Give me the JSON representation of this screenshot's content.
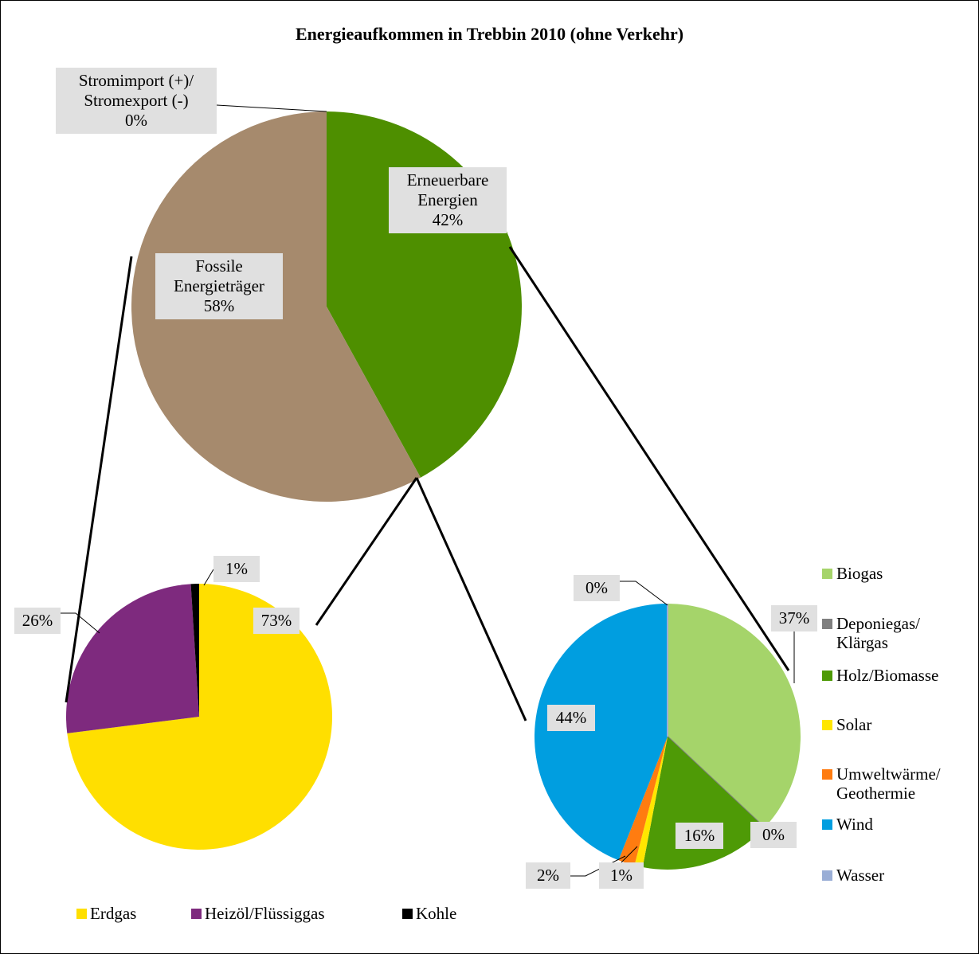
{
  "chart_data": [
    {
      "type": "pie",
      "title": "Energieaufkommen in Trebbin 2010 (ohne Verkehr)",
      "categories": [
        "Stromimport (+)/ Stromexport (-)",
        "Erneuerbare Energien",
        "Fossile Energieträger"
      ],
      "values": [
        0,
        42,
        58
      ],
      "value_labels": [
        "0%",
        "42%",
        "58%"
      ],
      "colors": [
        "#1f9ad6",
        "#4e8f00",
        "#a68a6d"
      ]
    },
    {
      "type": "pie",
      "categories": [
        "Erdgas",
        "Heizöl/Flüssiggas",
        "Kohle"
      ],
      "values": [
        73,
        26,
        1
      ],
      "value_labels": [
        "73%",
        "26%",
        "1%"
      ],
      "colors": [
        "#ffdf00",
        "#7e2a7e",
        "#000000"
      ],
      "legend": "bottom"
    },
    {
      "type": "pie",
      "categories": [
        "Biogas",
        "Deponiegas/ Klärgas",
        "Holz/Biomasse",
        "Solar",
        "Umweltwärme/ Geothermie",
        "Wind",
        "Wasser"
      ],
      "values": [
        37,
        0,
        16,
        1,
        2,
        44,
        0
      ],
      "value_labels": [
        "37%",
        "0%",
        "16%",
        "1%",
        "2%",
        "44%",
        "0%"
      ],
      "colors": [
        "#a5d46a",
        "#7f7f7f",
        "#4e9a06",
        "#ffe600",
        "#ff7c10",
        "#009ee0",
        "#9aaed6"
      ],
      "legend": "right"
    }
  ]
}
